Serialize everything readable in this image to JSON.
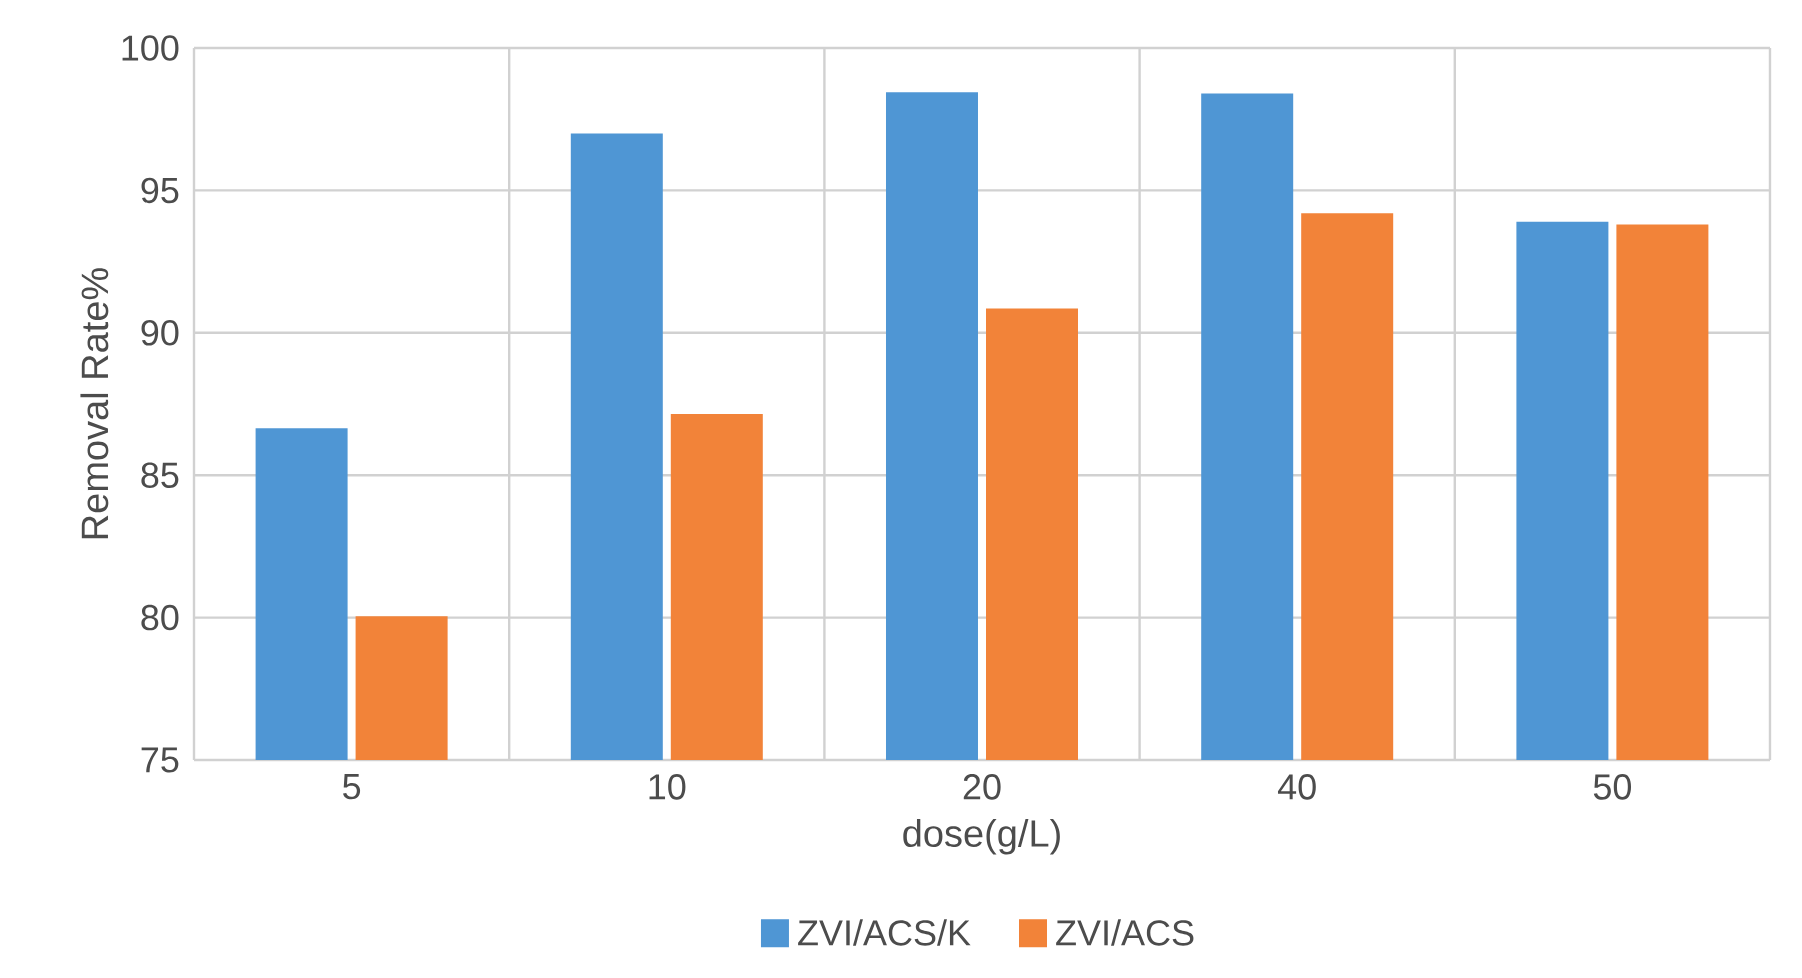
{
  "chart_data": {
    "type": "bar",
    "xlabel": "dose(g/L)",
    "ylabel": "Removal Rate%",
    "categories": [
      "5",
      "10",
      "20",
      "40",
      "50"
    ],
    "series": [
      {
        "name": "ZVI/ACS/K",
        "color": "#4f96d4",
        "values": [
          86.65,
          97.0,
          98.45,
          98.4,
          93.9
        ]
      },
      {
        "name": "ZVI/ACS",
        "color": "#f28339",
        "values": [
          80.05,
          87.15,
          90.85,
          94.2,
          93.8
        ]
      }
    ],
    "ylim": [
      75,
      100
    ],
    "yticks": [
      75,
      80,
      85,
      90,
      95,
      100
    ],
    "grid": true,
    "legend": "bottom"
  }
}
